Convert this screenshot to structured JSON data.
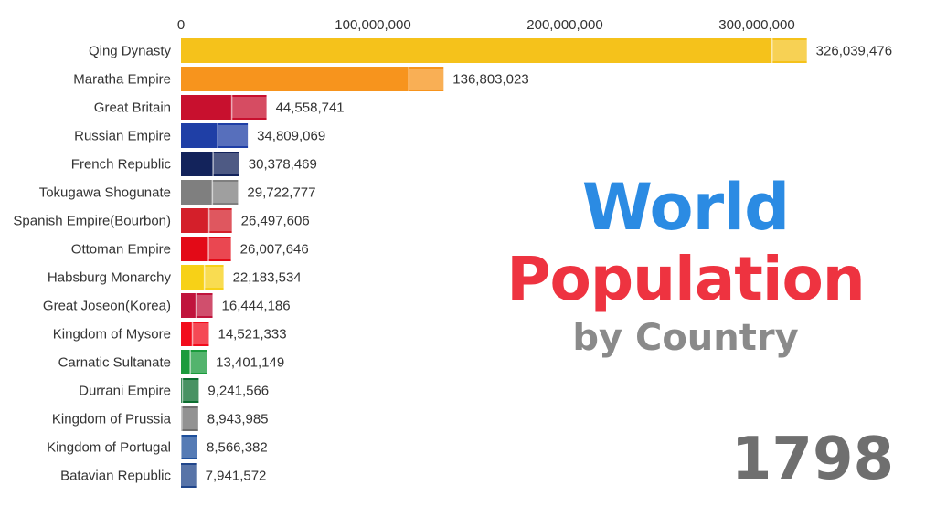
{
  "chart_data": {
    "type": "bar",
    "orientation": "horizontal",
    "x_ticks": [
      0,
      100000000,
      200000000,
      300000000
    ],
    "xlim": [
      0,
      350000000
    ],
    "grid": false,
    "categories": [
      "Qing Dynasty",
      "Maratha Empire",
      "Great Britain",
      "Russian Empire",
      "French Republic",
      "Tokugawa Shogunate",
      "Spanish Empire(Bourbon)",
      "Ottoman Empire",
      "Habsburg Monarchy",
      "Great Joseon(Korea)",
      "Kingdom of Mysore",
      "Carnatic Sultanate",
      "Durrani Empire",
      "Kingdom of Prussia",
      "Kingdom of Portugal",
      "Batavian Republic"
    ],
    "values": [
      326039476,
      136803023,
      44558741,
      34809069,
      30378469,
      29722777,
      26497606,
      26007646,
      22183534,
      16444186,
      14521333,
      13401149,
      9241566,
      8943985,
      8566382,
      7941572
    ],
    "value_labels": [
      "326,039,476",
      "136,803,023",
      "44,558,741",
      "34,809,069",
      "30,378,469",
      "29,722,777",
      "26,497,606",
      "26,007,646",
      "22,183,534",
      "16,444,186",
      "14,521,333",
      "13,401,149",
      "9,241,566",
      "8,943,985",
      "8,566,382",
      "7,941,572"
    ],
    "x_tick_labels": [
      "0",
      "100,000,000",
      "200,000,000",
      "300,000,000"
    ],
    "bar_colors": [
      "#f5c21b",
      "#f7941d",
      "#c8102e",
      "#1f3fa6",
      "#13235b",
      "#7f7f7f",
      "#d41f2a",
      "#e30a17",
      "#f7d117",
      "#c0143c",
      "#f20c1c",
      "#1a9b3c",
      "#0b6e2f",
      "#6e6e6e",
      "#1d4f9c",
      "#21468b"
    ]
  },
  "title": {
    "line1": "World",
    "line2": "Population",
    "line3": "by Country"
  },
  "year": "1798",
  "colors": {
    "title_world": "#2b8be3",
    "title_pop": "#ee3340",
    "title_sub": "#8a8a8a",
    "year": "#6f6f6f",
    "text": "#333333"
  }
}
